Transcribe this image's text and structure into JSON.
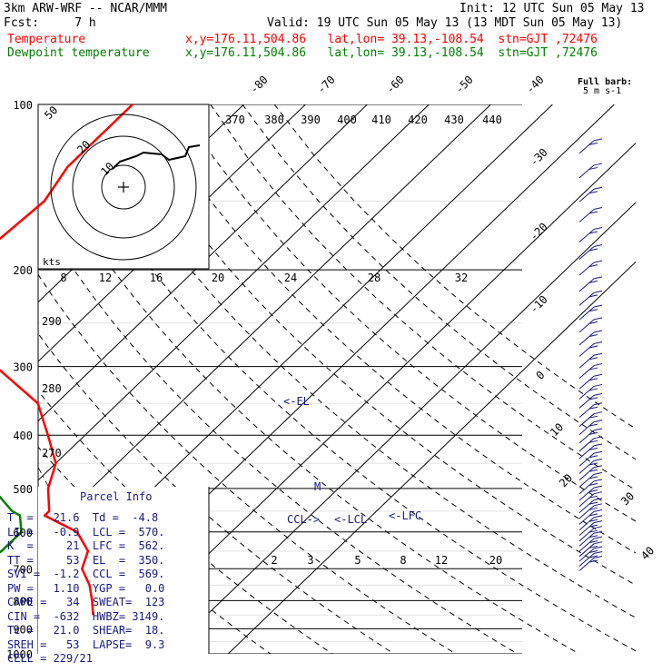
{
  "header": {
    "model": "3km ARW-WRF -- NCAR/MMM",
    "init": "Init: 12 UTC Sun 05 May 13",
    "fcst": "Fcst:     7 h",
    "valid": "Valid: 19 UTC Sun 05 May 13 (13 MDT Sun 05 May 13)",
    "temp_label": "Temperature",
    "temp_info": "x,y=176.11,504.86   lat,lon= 39.13,-108.54  stn=GJT ,72476",
    "dew_label": "Dewpoint temperature",
    "dew_info": "x,y=176.11,504.86   lat,lon= 39.13,-108.54  stn=GJT ,72476",
    "barb_title": "Full barb:",
    "barb_units": "5 m s-1"
  },
  "colors": {
    "temperature": "#ff0000",
    "dewpoint": "#008000",
    "parcel_text": "#1a1a80",
    "barbs": "#1a1a80",
    "grid": "#000000"
  },
  "parcel": {
    "title": "Parcel Info",
    "rows": [
      "T  =   21.6  Td =  -4.8",
      "LI =   -0.9  LCL =  570.",
      "K  =     21  LFC =  562.",
      "TT =     53  EL  =  350.",
      "SVI =  -1.2  CCL =  569.",
      "PW =   1.10  YGP =   0.0",
      "CAPE =   34  SWEAT=  123",
      "CIN =  -632  HWBZ= 3149.",
      "Tc =   21.0  SHEAR=  18.",
      "SREH =   53  LAPSE=  9.3",
      "CELL = 229/21"
    ]
  },
  "annotations": {
    "el": "<-EL",
    "lcl": "<-LCL",
    "lfc": "<-LFC",
    "ccl": "CCL->",
    "m": "M",
    "hodo_units": "kts"
  },
  "chart_data": {
    "type": "line",
    "chart_kind": "skew-T log-p sounding",
    "pressure_levels": [
      100,
      200,
      300,
      400,
      500,
      600,
      700,
      800,
      900,
      1000
    ],
    "isotherm_labels": [
      -80,
      -70,
      -60,
      -50,
      -40,
      -30,
      -20,
      -10,
      0,
      10,
      20,
      30,
      40
    ],
    "theta_labels": [
      370,
      380,
      390,
      400,
      410,
      420,
      430,
      440
    ],
    "theta_e_labels": [
      20,
      24,
      28,
      32
    ],
    "theta_e_left_labels": [
      8,
      12,
      16
    ],
    "theta_left_labels": [
      290,
      280,
      270
    ],
    "mixing_ratio_labels": [
      2,
      3,
      5,
      8,
      12,
      20
    ],
    "hodograph_ring_labels": [
      50,
      20,
      10
    ],
    "series": [
      {
        "name": "Temperature",
        "color": "#ff0000",
        "points": [
          [
            100,
            -58
          ],
          [
            130,
            -58
          ],
          [
            150,
            -56
          ],
          [
            180,
            -57
          ],
          [
            200,
            -55
          ],
          [
            250,
            -47
          ],
          [
            300,
            -36
          ],
          [
            350,
            -23
          ],
          [
            400,
            -16
          ],
          [
            450,
            -10
          ],
          [
            500,
            -7
          ],
          [
            550,
            -3
          ],
          [
            560,
            -3
          ],
          [
            600,
            5
          ],
          [
            650,
            10
          ],
          [
            700,
            12
          ],
          [
            750,
            16
          ],
          [
            800,
            19
          ],
          [
            850,
            21.6
          ]
        ]
      },
      {
        "name": "Dewpoint temperature",
        "color": "#008000",
        "points": [
          [
            100,
            -88
          ],
          [
            130,
            -90
          ],
          [
            150,
            -95
          ],
          [
            200,
            -85
          ],
          [
            250,
            -72
          ],
          [
            300,
            -58
          ],
          [
            350,
            -52
          ],
          [
            400,
            -36
          ],
          [
            450,
            -27
          ],
          [
            500,
            -16
          ],
          [
            550,
            -9
          ],
          [
            560,
            -7
          ],
          [
            600,
            -4
          ],
          [
            650,
            -4
          ],
          [
            700,
            -5
          ],
          [
            750,
            -5
          ],
          [
            800,
            -5
          ],
          [
            850,
            -4.8
          ]
        ]
      }
    ],
    "wind_barbs": {
      "title": "Full barb: 5 m s-1",
      "pressures": [
        120,
        133,
        147,
        160,
        174,
        187,
        200,
        214,
        227,
        241,
        254,
        268,
        281,
        295,
        308,
        322,
        336,
        349,
        363,
        377,
        390,
        404,
        418,
        431,
        445,
        459,
        472,
        486,
        500,
        514,
        527,
        541,
        554,
        568,
        582,
        595,
        609,
        622,
        636,
        650,
        663,
        677,
        690
      ]
    }
  }
}
